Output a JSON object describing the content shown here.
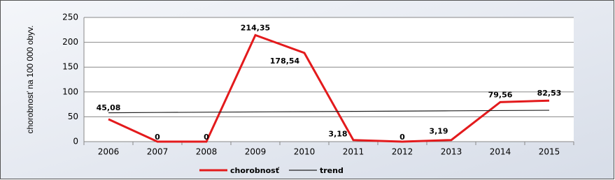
{
  "chart_data": {
    "type": "line",
    "y_label": "chorobnosť na 100 000 obyv.",
    "categories": [
      "2006",
      "2007",
      "2008",
      "2009",
      "2010",
      "2011",
      "2012",
      "2013",
      "2014",
      "2015"
    ],
    "series": [
      {
        "name": "chorobnosť",
        "color": "#e31a1c",
        "values": [
          45.08,
          0,
          0,
          214.35,
          178.54,
          3.18,
          0,
          3.19,
          79.56,
          82.53
        ],
        "value_labels": [
          "45,08",
          "0",
          "0",
          "214,35",
          "178,54",
          "3,18",
          "0",
          "3,19",
          "79,56",
          "82,53"
        ]
      },
      {
        "name": "trend",
        "color": "#222222",
        "values": [
          58.15,
          58.7,
          59.26,
          59.81,
          60.37,
          60.92,
          61.47,
          62.03,
          62.58,
          63.14
        ]
      }
    ],
    "ylim": [
      0,
      250
    ],
    "yticks": [
      0,
      50,
      100,
      150,
      200,
      250
    ],
    "grid": true
  }
}
